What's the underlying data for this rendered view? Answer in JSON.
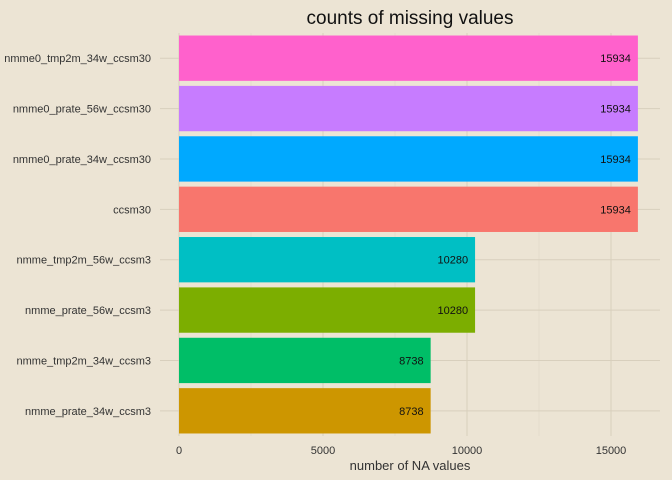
{
  "chart_data": {
    "type": "bar",
    "orientation": "horizontal",
    "title": "counts of missing values",
    "xlabel": "number of NA values",
    "ylabel": "",
    "xlim": [
      0,
      16000
    ],
    "xticks": [
      0,
      5000,
      10000,
      15000
    ],
    "grid": true,
    "legend": "none",
    "categories": [
      "nmme0_tmp2m_34w_ccsm30",
      "nmme0_prate_56w_ccsm30",
      "nmme0_prate_34w_ccsm30",
      "ccsm30",
      "nmme_tmp2m_56w_ccsm3",
      "nmme_prate_56w_ccsm3",
      "nmme_tmp2m_34w_ccsm3",
      "nmme_prate_34w_ccsm3"
    ],
    "values": [
      15934,
      15934,
      15934,
      15934,
      10280,
      10280,
      8738,
      8738
    ],
    "colors": [
      "#ff61cc",
      "#c77cff",
      "#00a9ff",
      "#f8766d",
      "#00bfc4",
      "#7cae00",
      "#00be67",
      "#cd9600"
    ]
  }
}
